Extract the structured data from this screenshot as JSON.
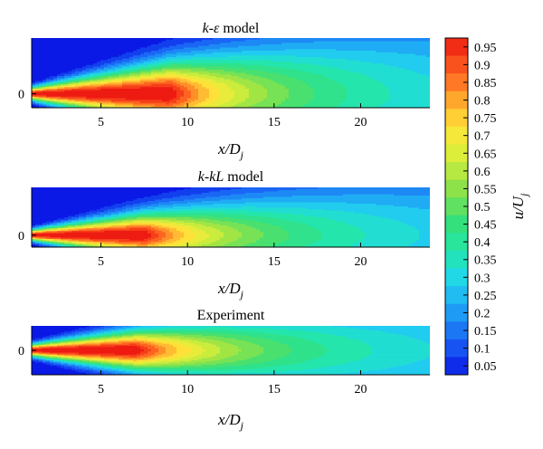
{
  "chart_data": {
    "type": "heatmap",
    "colormap": [
      [
        0.0,
        "#0a19e6"
      ],
      [
        0.1,
        "#1a62f5"
      ],
      [
        0.2,
        "#1fa6f5"
      ],
      [
        0.28,
        "#21d6ee"
      ],
      [
        0.36,
        "#22e6b0"
      ],
      [
        0.45,
        "#35e07a"
      ],
      [
        0.55,
        "#8be24a"
      ],
      [
        0.65,
        "#d8ee3a"
      ],
      [
        0.73,
        "#ffe63a"
      ],
      [
        0.8,
        "#ffb530"
      ],
      [
        0.88,
        "#ff6e23"
      ],
      [
        1.0,
        "#ee1b12"
      ]
    ],
    "colorbar": {
      "label": "u/Uj",
      "levels": [
        0.05,
        0.1,
        0.15,
        0.2,
        0.25,
        0.3,
        0.35,
        0.4,
        0.45,
        0.5,
        0.55,
        0.6,
        0.65,
        0.7,
        0.75,
        0.8,
        0.85,
        0.9,
        0.95
      ],
      "tick_labels": [
        "0.95",
        "0.9",
        "0.85",
        "0.8",
        "0.75",
        "0.7",
        "0.65",
        "0.6",
        "0.55",
        "0.5",
        "0.45",
        "0.4",
        "0.35",
        "0.3",
        "0.25",
        "0.2",
        "0.15",
        "0.1",
        "0.05"
      ],
      "range": [
        0.025,
        0.975
      ]
    },
    "panels": [
      {
        "title": "k-ε model",
        "xlabel": "x/Dj",
        "xlim": [
          1,
          24
        ],
        "ylim": [
          -0.4,
          1.6
        ],
        "x_ticks": [
          5,
          10,
          15,
          20
        ],
        "x_tick_labels": [
          "5",
          "10",
          "15",
          "20"
        ],
        "y_ticks": [
          0
        ],
        "y_tick_labels": [
          "0"
        ],
        "potential_core_length": 9.0,
        "centerline_decay": 6.5,
        "spread_rate": 0.09,
        "initial_halfwidth": 0.18,
        "centerline_velocity": [
          [
            2,
            0.98
          ],
          [
            5,
            0.97
          ],
          [
            8,
            0.92
          ],
          [
            11,
            0.72
          ],
          [
            15,
            0.56
          ],
          [
            20,
            0.43
          ],
          [
            24,
            0.36
          ]
        ]
      },
      {
        "title": "k-kL model",
        "xlabel": "x/Dj",
        "xlim": [
          1,
          24
        ],
        "ylim": [
          -0.4,
          1.6
        ],
        "x_ticks": [
          5,
          10,
          15,
          20
        ],
        "x_tick_labels": [
          "5",
          "10",
          "15",
          "20"
        ],
        "y_ticks": [
          0
        ],
        "y_tick_labels": [
          "0"
        ],
        "potential_core_length": 7.5,
        "centerline_decay": 6.5,
        "spread_rate": 0.085,
        "initial_halfwidth": 0.18,
        "centerline_velocity": [
          [
            2,
            0.98
          ],
          [
            5,
            0.96
          ],
          [
            8,
            0.86
          ],
          [
            11,
            0.66
          ],
          [
            15,
            0.52
          ],
          [
            20,
            0.41
          ],
          [
            24,
            0.35
          ]
        ]
      },
      {
        "title": "Experiment",
        "xlabel": "x/Dj",
        "xlim": [
          1,
          24
        ],
        "ylim": [
          -0.8,
          0.8
        ],
        "x_ticks": [
          5,
          10,
          15,
          20
        ],
        "x_tick_labels": [
          "5",
          "10",
          "15",
          "20"
        ],
        "y_ticks": [
          0
        ],
        "y_tick_labels": [
          "0"
        ],
        "potential_core_length": 7.0,
        "centerline_decay": 7.0,
        "spread_rate": 0.075,
        "initial_halfwidth": 0.2,
        "centerline_velocity": [
          [
            2,
            0.98
          ],
          [
            5,
            0.96
          ],
          [
            8,
            0.85
          ],
          [
            11,
            0.66
          ],
          [
            15,
            0.53
          ],
          [
            20,
            0.43
          ],
          [
            24,
            0.37
          ]
        ]
      }
    ]
  }
}
